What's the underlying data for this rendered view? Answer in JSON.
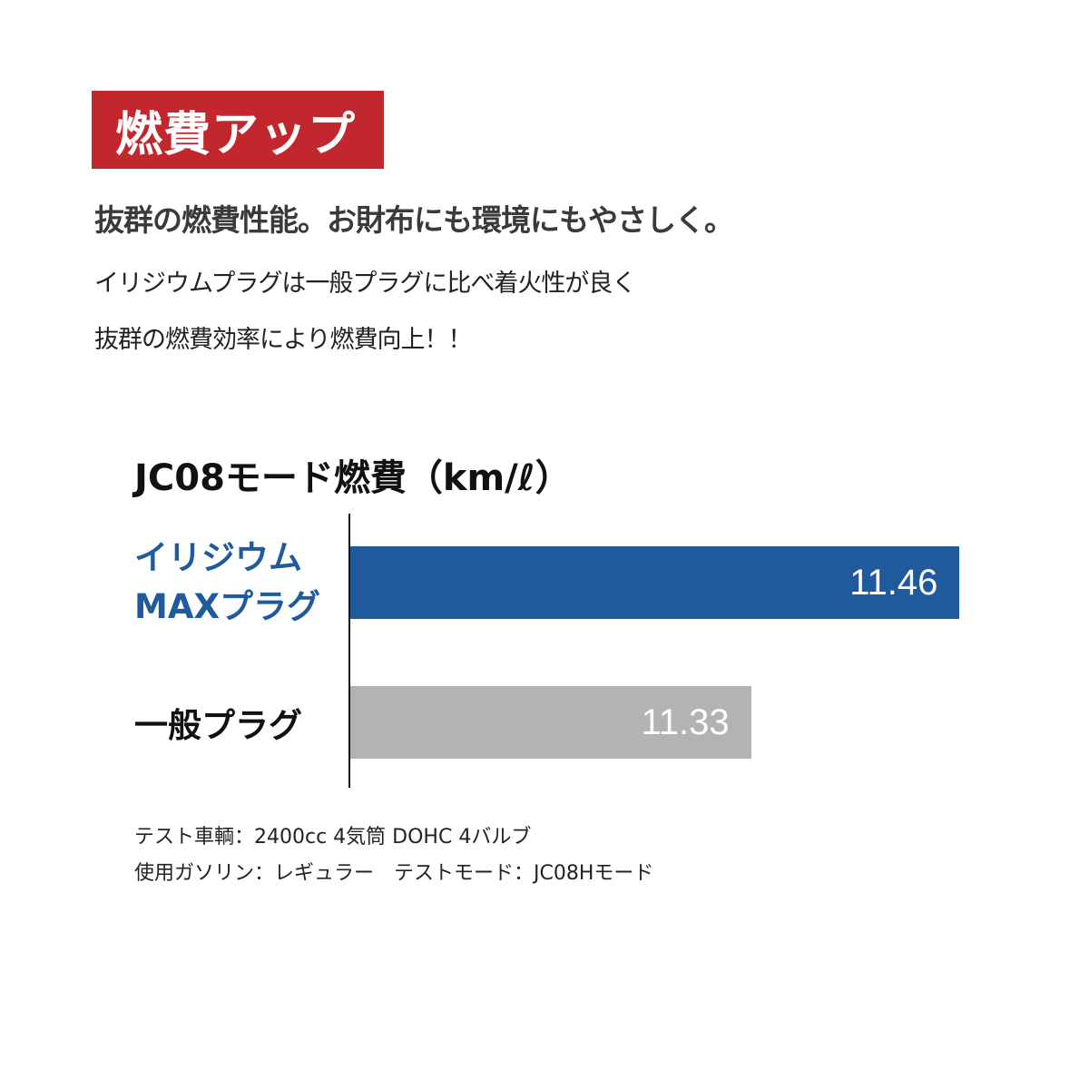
{
  "badge": "燃費アップ",
  "headline": "抜群の燃費性能。お財布にも環境にもやさしく。",
  "body_lines": [
    "イリジウムプラグは一般プラグに比べ着火性が良く",
    "抜群の燃費効率により燃費向上！！"
  ],
  "colors": {
    "badge": "#c1272d",
    "iridium": "#1f5a9c",
    "standard": "#b3b3b3"
  },
  "chart_data": {
    "type": "bar",
    "orientation": "horizontal",
    "title": "JC08モード燃費（km/ℓ）",
    "categories": [
      "イリジウム MAXプラグ",
      "一般プラグ"
    ],
    "category_lines": [
      [
        "イリジウム",
        "MAXプラグ"
      ],
      [
        "一般プラグ"
      ]
    ],
    "values": [
      11.46,
      11.33
    ],
    "value_labels": [
      "11.46",
      "11.33"
    ],
    "xlim": [
      11.08,
      11.5
    ]
  },
  "notes": [
    "テスト車輌：2400cc 4気筒 DOHC 4バルブ",
    "使用ガソリン：レギュラー　テストモード：JC08Hモード"
  ]
}
